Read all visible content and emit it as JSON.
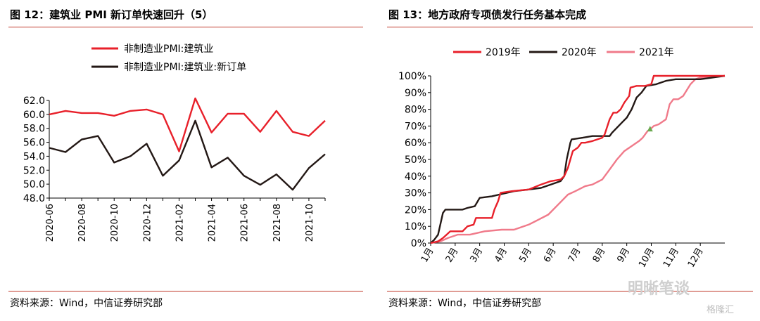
{
  "left": {
    "title": "图 12：建筑业 PMI 新订单快速回升（5）",
    "source": "资料来源：Wind，中信证券研究部"
  },
  "right": {
    "title": "图 13：地方政府专项债发行任务基本完成",
    "source": "资料来源：Wind，中信证券研究部"
  },
  "watermark": {
    "text": "明晰笔谈",
    "sub": "格隆汇"
  },
  "chart_data": [
    {
      "type": "line",
      "title": "",
      "x": [
        "2020-06",
        "2020-07",
        "2020-08",
        "2020-09",
        "2020-10",
        "2020-11",
        "2020-12",
        "2021-01",
        "2021-02",
        "2021-03",
        "2021-04",
        "2021-05",
        "2021-06",
        "2021-07",
        "2021-08",
        "2021-09",
        "2021-10",
        "2021-11"
      ],
      "x_tick_labels": [
        "2020-06",
        "2020-08",
        "2020-10",
        "2020-12",
        "2021-02",
        "2021-04",
        "2021-06",
        "2021-08",
        "2021-10"
      ],
      "series": [
        {
          "name": "非制造业PMI:建筑业",
          "color": "#e8202a",
          "values": [
            60.0,
            60.5,
            60.2,
            60.2,
            59.8,
            60.5,
            60.7,
            60.0,
            54.7,
            62.3,
            57.4,
            60.1,
            60.1,
            57.5,
            60.5,
            57.5,
            56.9,
            59.1
          ]
        },
        {
          "name": "非制造业PMI:建筑业:新订单",
          "color": "#231815",
          "values": [
            55.2,
            54.6,
            56.4,
            56.9,
            53.1,
            54.0,
            55.8,
            51.2,
            53.4,
            59.1,
            52.4,
            53.8,
            51.2,
            49.9,
            51.4,
            49.2,
            52.3,
            54.3
          ]
        }
      ],
      "ylim": [
        48.0,
        62.0
      ],
      "y_ticks": [
        "48.0",
        "50.0",
        "52.0",
        "54.0",
        "56.0",
        "58.0",
        "60.0",
        "62.0"
      ],
      "xlabel": "",
      "ylabel": "",
      "grid": false,
      "legend": "top-left"
    },
    {
      "type": "line",
      "title": "",
      "x_tick_labels": [
        "1月",
        "2月",
        "3月",
        "4月",
        "5月",
        "6月",
        "7月",
        "8月",
        "9月",
        "10月",
        "11月",
        "12月"
      ],
      "xlim": [
        1,
        13
      ],
      "ylim": [
        0,
        100
      ],
      "y_ticks": [
        "0%",
        "10%",
        "20%",
        "30%",
        "40%",
        "50%",
        "60%",
        "70%",
        "80%",
        "90%",
        "100%"
      ],
      "series": [
        {
          "name": "2019年",
          "color": "#e8202a",
          "points": [
            [
              1,
              0
            ],
            [
              1.3,
              1
            ],
            [
              1.5,
              3
            ],
            [
              1.8,
              7
            ],
            [
              2.3,
              7
            ],
            [
              2.5,
              10
            ],
            [
              2.75,
              11
            ],
            [
              2.85,
              15
            ],
            [
              3.5,
              15
            ],
            [
              3.6,
              20
            ],
            [
              3.75,
              25
            ],
            [
              3.85,
              30
            ],
            [
              4.3,
              31
            ],
            [
              5,
              32
            ],
            [
              5.5,
              35
            ],
            [
              5.9,
              37
            ],
            [
              6.3,
              38
            ],
            [
              6.45,
              40
            ],
            [
              6.6,
              45
            ],
            [
              6.7,
              50
            ],
            [
              6.8,
              55
            ],
            [
              7.0,
              57
            ],
            [
              7.15,
              60
            ],
            [
              7.3,
              60
            ],
            [
              7.6,
              61
            ],
            [
              8,
              63
            ],
            [
              8.1,
              65
            ],
            [
              8.3,
              74
            ],
            [
              8.45,
              78
            ],
            [
              8.6,
              78
            ],
            [
              8.75,
              80
            ],
            [
              8.9,
              84
            ],
            [
              9.1,
              88
            ],
            [
              9.15,
              93
            ],
            [
              9.4,
              94
            ],
            [
              9.75,
              94
            ],
            [
              10,
              95
            ],
            [
              10.1,
              100
            ],
            [
              10.7,
              100
            ],
            [
              11.2,
              100
            ],
            [
              12,
              100
            ],
            [
              13,
              100
            ]
          ]
        },
        {
          "name": "2020年",
          "color": "#231815",
          "points": [
            [
              1,
              0
            ],
            [
              1.15,
              2
            ],
            [
              1.3,
              5
            ],
            [
              1.5,
              18
            ],
            [
              1.6,
              20
            ],
            [
              2.3,
              20
            ],
            [
              2.5,
              21
            ],
            [
              2.8,
              22
            ],
            [
              3,
              27
            ],
            [
              3.5,
              28
            ],
            [
              3.8,
              29
            ],
            [
              4.1,
              30
            ],
            [
              4.4,
              31
            ],
            [
              5,
              32
            ],
            [
              5.5,
              33
            ],
            [
              5.9,
              35
            ],
            [
              6.3,
              37
            ],
            [
              6.45,
              40
            ],
            [
              6.55,
              50
            ],
            [
              6.7,
              60
            ],
            [
              6.75,
              62
            ],
            [
              7.2,
              63
            ],
            [
              7.6,
              64
            ],
            [
              8.3,
              64
            ],
            [
              8.4,
              66
            ],
            [
              8.6,
              69
            ],
            [
              8.8,
              72
            ],
            [
              9,
              75
            ],
            [
              9.2,
              80
            ],
            [
              9.4,
              87
            ],
            [
              9.6,
              90
            ],
            [
              9.8,
              94
            ],
            [
              10.2,
              95
            ],
            [
              10.6,
              97
            ],
            [
              11,
              98
            ],
            [
              11.5,
              98
            ],
            [
              12,
              98
            ],
            [
              13,
              100
            ]
          ]
        },
        {
          "name": "2021年",
          "color": "#f07a8a",
          "points": [
            [
              1,
              0
            ],
            [
              1.4,
              1
            ],
            [
              1.7,
              3
            ],
            [
              2.1,
              5
            ],
            [
              2.6,
              5
            ],
            [
              2.9,
              6
            ],
            [
              3.2,
              7
            ],
            [
              3.9,
              8
            ],
            [
              4.4,
              8
            ],
            [
              5,
              11
            ],
            [
              5.4,
              14
            ],
            [
              5.8,
              17
            ],
            [
              6.2,
              23
            ],
            [
              6.6,
              29
            ],
            [
              6.9,
              31
            ],
            [
              7.3,
              34
            ],
            [
              7.6,
              35
            ],
            [
              8,
              38
            ],
            [
              8.3,
              44
            ],
            [
              8.6,
              50
            ],
            [
              8.9,
              55
            ],
            [
              9.2,
              58
            ],
            [
              9.5,
              61
            ],
            [
              9.65,
              63
            ],
            [
              9.75,
              65
            ],
            [
              9.85,
              67
            ],
            [
              9.95,
              68
            ],
            [
              10.1,
              70
            ],
            [
              10.3,
              71
            ],
            [
              10.6,
              74
            ],
            [
              10.75,
              83
            ],
            [
              10.9,
              86
            ],
            [
              11.1,
              86
            ],
            [
              11.3,
              88
            ],
            [
              11.6,
              95
            ],
            [
              11.8,
              98
            ],
            [
              12,
              99
            ],
            [
              13,
              100
            ]
          ]
        }
      ],
      "xlabel": "",
      "ylabel": "",
      "grid": false,
      "legend": "top"
    }
  ]
}
